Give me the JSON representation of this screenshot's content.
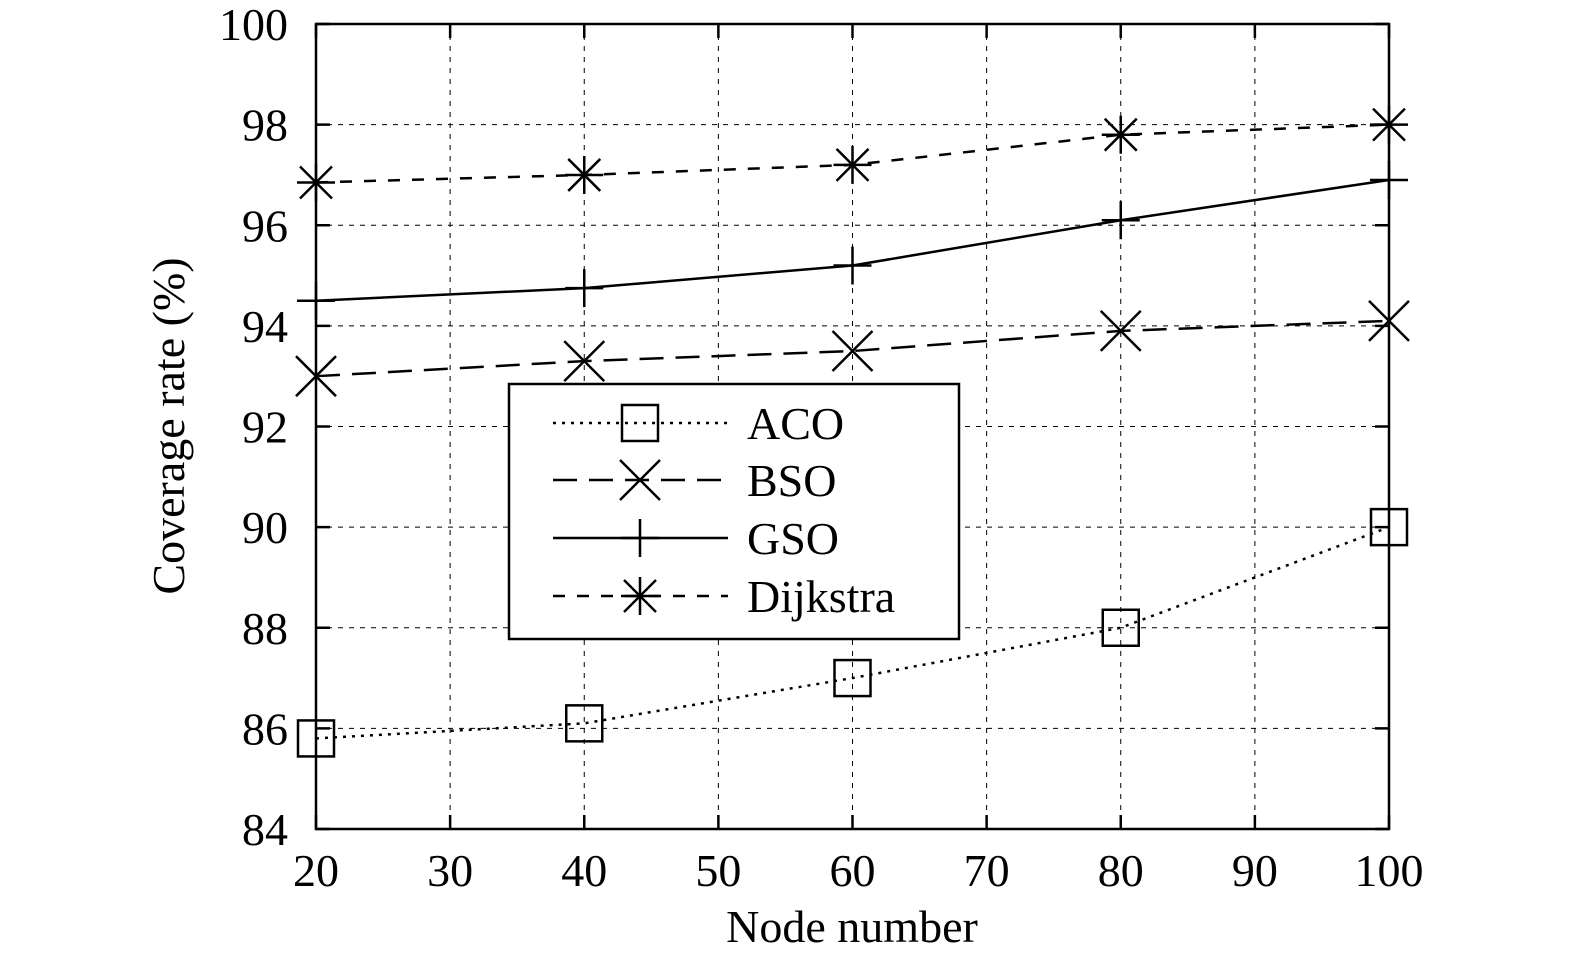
{
  "chart_data": {
    "type": "line",
    "title": "",
    "xlabel": "Node number",
    "ylabel": "Coverage rate (%)",
    "xlim": [
      20,
      100
    ],
    "ylim": [
      84,
      100
    ],
    "xticks": [
      20,
      30,
      40,
      50,
      60,
      70,
      80,
      90,
      100
    ],
    "yticks": [
      84,
      86,
      88,
      90,
      92,
      94,
      96,
      98,
      100
    ],
    "grid": true,
    "legend_position": "center-left",
    "x": [
      20,
      40,
      60,
      80,
      100
    ],
    "series": [
      {
        "name": "ACO",
        "values": [
          85.8,
          86.1,
          87.0,
          88.0,
          90.0
        ],
        "line_style": "dotted",
        "marker": "square"
      },
      {
        "name": "BSO",
        "values": [
          93.0,
          93.3,
          93.5,
          93.9,
          94.1
        ],
        "line_style": "dashed",
        "marker": "x"
      },
      {
        "name": "GSO",
        "values": [
          94.5,
          94.75,
          95.2,
          96.1,
          96.9
        ],
        "line_style": "solid",
        "marker": "plus"
      },
      {
        "name": "Dijkstra",
        "values": [
          96.85,
          97.0,
          97.2,
          97.8,
          98.0
        ],
        "line_style": "short-dashed",
        "marker": "star"
      }
    ],
    "colors": {
      "line": "#000000",
      "grid": "#000000",
      "background": "#ffffff"
    }
  }
}
